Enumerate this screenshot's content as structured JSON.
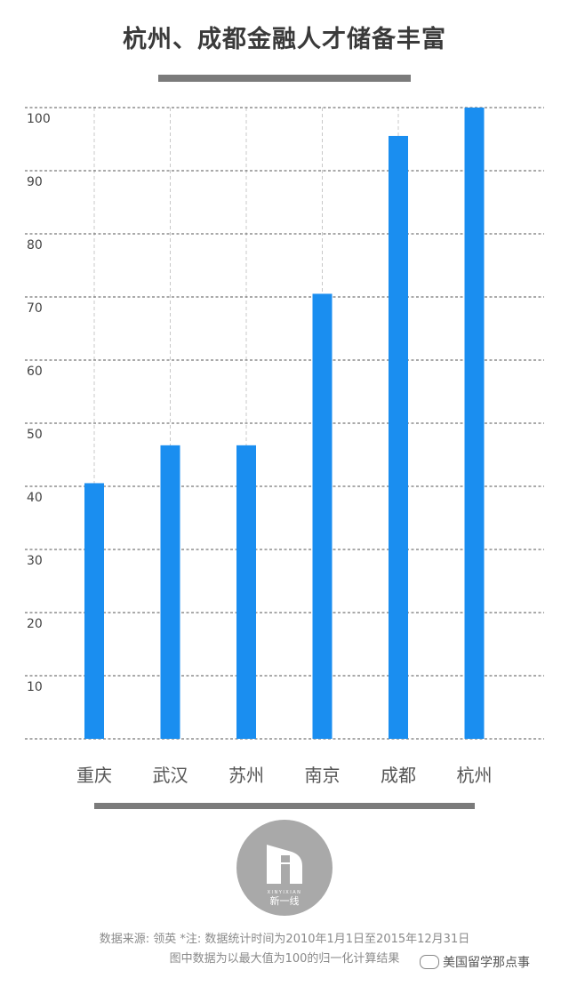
{
  "header": {
    "title": "杭州、成都金融人才储备丰富"
  },
  "chart_data": {
    "type": "bar",
    "title": "杭州、成都金融人才储备丰富",
    "categories": [
      "重庆",
      "武汉",
      "苏州",
      "南京",
      "成都",
      "杭州"
    ],
    "values": [
      40.5,
      46.5,
      46.5,
      70.5,
      95.5,
      100
    ],
    "ylim": [
      0,
      100
    ],
    "yticks": [
      10,
      20,
      30,
      40,
      50,
      60,
      70,
      80,
      90,
      100
    ],
    "grid": true,
    "bar_color": "#1a8ef0",
    "grid_color": "#555555"
  },
  "logo": {
    "name": "新一线",
    "subtitle": "XINYIXIAN"
  },
  "footer": {
    "source": "数据来源: 领英  *注: 数据统计时间为2010年1月1日至2015年12月31日",
    "note": "图中数据为以最大值为100的归一化计算结果",
    "watermark": "美国留学那点事"
  }
}
